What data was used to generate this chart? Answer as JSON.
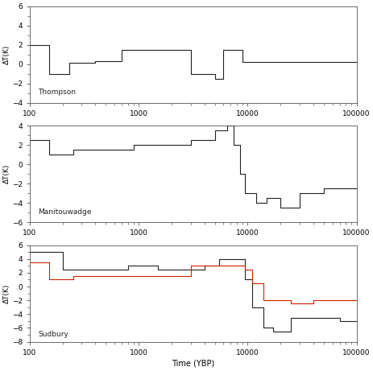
{
  "thompson": {
    "label": "Thompson",
    "ylim": [
      -4,
      6
    ],
    "yticks": [
      -4,
      -2,
      0,
      2,
      4,
      6
    ],
    "x": [
      100,
      150,
      150,
      230,
      230,
      400,
      400,
      700,
      700,
      1000,
      1000,
      1500,
      1500,
      2200,
      2200,
      3000,
      3000,
      5000,
      5000,
      6000,
      6000,
      7500,
      7500,
      9000,
      9000,
      15000,
      15000,
      20000,
      20000,
      100000
    ],
    "y": [
      2,
      2,
      -1,
      -1,
      0.1,
      0.1,
      0.3,
      0.3,
      1.5,
      1.5,
      1.5,
      1.5,
      1.5,
      1.5,
      1.5,
      1.5,
      -1,
      -1,
      -1.5,
      -1.5,
      1.5,
      1.5,
      1.5,
      1.5,
      0.2,
      0.2,
      0.2,
      0.2,
      0.2,
      0.2
    ]
  },
  "manitouwadge": {
    "label": "Manitouwadge",
    "ylim": [
      -6,
      4
    ],
    "yticks": [
      -6,
      -4,
      -2,
      0,
      2,
      4
    ],
    "x": [
      100,
      150,
      150,
      250,
      250,
      600,
      600,
      900,
      900,
      1500,
      1500,
      3000,
      3000,
      5000,
      5000,
      6500,
      6500,
      7500,
      7500,
      8500,
      8500,
      9500,
      9500,
      12000,
      12000,
      15000,
      15000,
      20000,
      20000,
      30000,
      30000,
      50000,
      50000,
      100000
    ],
    "y": [
      2.5,
      2.5,
      1,
      1,
      1.5,
      1.5,
      1.5,
      1.5,
      2,
      2,
      2,
      2,
      2.5,
      2.5,
      3.5,
      3.5,
      4,
      4,
      2,
      2,
      -1,
      -1,
      -3,
      -3,
      -4,
      -4,
      -3.5,
      -3.5,
      -4.5,
      -4.5,
      -3,
      -3,
      -2.5,
      -2.5
    ]
  },
  "sudbury": {
    "label": "Sudbury",
    "ylim": [
      -8,
      6
    ],
    "yticks": [
      -8,
      -6,
      -4,
      -2,
      0,
      2,
      4,
      6
    ],
    "x_black": [
      100,
      150,
      150,
      200,
      200,
      300,
      300,
      500,
      500,
      800,
      800,
      1500,
      1500,
      2500,
      2500,
      4000,
      4000,
      5500,
      5500,
      7000,
      7000,
      8500,
      8500,
      9500,
      9500,
      11000,
      11000,
      14000,
      14000,
      17000,
      17000,
      25000,
      25000,
      40000,
      40000,
      70000,
      70000,
      100000
    ],
    "y_black": [
      5,
      5,
      5,
      5,
      2.5,
      2.5,
      2.5,
      2.5,
      2.5,
      2.5,
      3,
      3,
      2.5,
      2.5,
      2.5,
      2.5,
      3,
      3,
      4,
      4,
      4,
      4,
      4,
      4,
      1,
      1,
      -3,
      -3,
      -6,
      -6,
      -6.5,
      -6.5,
      -4.5,
      -4.5,
      -4.5,
      -4.5,
      -5,
      -5
    ],
    "x_red": [
      100,
      150,
      150,
      250,
      250,
      600,
      600,
      900,
      900,
      1800,
      1800,
      3000,
      3000,
      5500,
      5500,
      7000,
      7000,
      8500,
      8500,
      9500,
      9500,
      11000,
      11000,
      14000,
      14000,
      25000,
      25000,
      40000,
      40000,
      70000,
      70000,
      100000
    ],
    "y_red": [
      3.5,
      3.5,
      1,
      1,
      1.5,
      1.5,
      1.5,
      1.5,
      1.5,
      1.5,
      1.5,
      1.5,
      3,
      3,
      3,
      3,
      3,
      3,
      3,
      3,
      2.5,
      2.5,
      0.5,
      0.5,
      -2,
      -2,
      -2.5,
      -2.5,
      -2,
      -2,
      -2,
      -2
    ]
  },
  "xlim": [
    100,
    100000
  ],
  "major_ticks": [
    100,
    1000,
    10000,
    100000
  ],
  "major_labels": [
    "100",
    "1000",
    "10000",
    "100000"
  ],
  "xlabel": "Time (YBP)",
  "ylabel": "ΔT(K)",
  "black_color": "#222222",
  "red_color": "#cc2200",
  "background": "#ffffff",
  "fig_width": 4.64,
  "fig_height": 4.61,
  "dpi": 100
}
